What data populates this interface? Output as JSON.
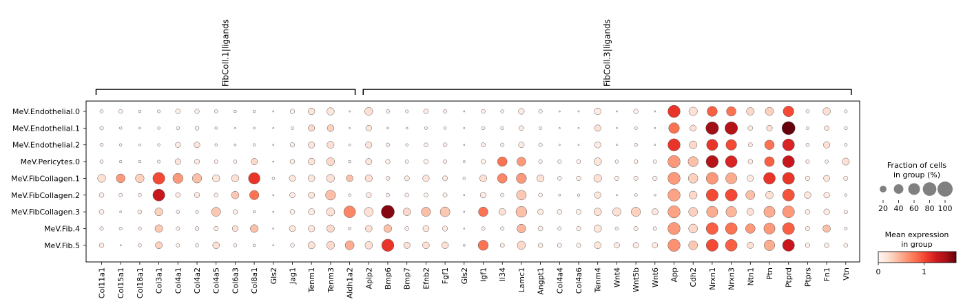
{
  "chart_data": {
    "type": "dotplot",
    "groups": [
      "MeV.Endothelial.0",
      "MeV.Endothelial.1",
      "MeV.Endothelial.2",
      "MeV.Pericytes.0",
      "MeV.FibCollagen.1",
      "MeV.FibCollagen.2",
      "MeV.FibCollagen.3",
      "MeV.Fib.4",
      "MeV.Fib.5"
    ],
    "genes": [
      "Col11a1",
      "Col15a1",
      "Col18a1",
      "Col3a1",
      "Col4a1",
      "Col4a2",
      "Col4a5",
      "Col6a3",
      "Col8a1",
      "Gls2",
      "Jag1",
      "Tenm1",
      "Tenm3",
      "Aldh1a2",
      "Aplp2",
      "Bmp6",
      "Bmp7",
      "Efnb2",
      "Fgf1",
      "Gls2",
      "Igf1",
      "Il34",
      "Lamc1",
      "Angpt1",
      "Col4a4",
      "Col4a6",
      "Tenm4",
      "Wnt4",
      "Wnt5b",
      "Wnt6",
      "App",
      "Cdh2",
      "Nrxn1",
      "Nrxn3",
      "Ntn1",
      "Ptn",
      "Ptprd",
      "Ptprs",
      "Fn1",
      "Vtn"
    ],
    "brackets": [
      {
        "label": "FibColl.1|ligands",
        "start": 0,
        "end": 13
      },
      {
        "label": "FibColl.3|ligands",
        "start": 14,
        "end": 39
      }
    ],
    "fraction_pct": [
      [
        5,
        7,
        3,
        4,
        10,
        9,
        5,
        3,
        3,
        1,
        9,
        20,
        24,
        1,
        28,
        6,
        4,
        10,
        6,
        1,
        7,
        5,
        15,
        6,
        1,
        1,
        20,
        1,
        9,
        1,
        65,
        32,
        45,
        40,
        26,
        30,
        50,
        5,
        24,
        4
      ],
      [
        6,
        3,
        2,
        3,
        5,
        7,
        3,
        1,
        2,
        1,
        4,
        18,
        20,
        1,
        15,
        2,
        2,
        4,
        3,
        1,
        5,
        5,
        10,
        4,
        1,
        1,
        18,
        1,
        4,
        1,
        50,
        17,
        70,
        70,
        10,
        15,
        75,
        4,
        10,
        5
      ],
      [
        5,
        3,
        2,
        3,
        12,
        15,
        3,
        2,
        3,
        1,
        9,
        18,
        22,
        2,
        18,
        6,
        3,
        7,
        7,
        1,
        8,
        6,
        14,
        6,
        1,
        1,
        17,
        1,
        5,
        1,
        65,
        27,
        55,
        50,
        8,
        40,
        62,
        5,
        19,
        4
      ],
      [
        5,
        3,
        3,
        4,
        15,
        11,
        6,
        5,
        18,
        1,
        10,
        20,
        28,
        3,
        17,
        9,
        5,
        9,
        6,
        2,
        9,
        40,
        35,
        6,
        6,
        7,
        25,
        5,
        7,
        5,
        65,
        45,
        65,
        60,
        10,
        42,
        62,
        6,
        5,
        22
      ],
      [
        28,
        34,
        33,
        62,
        45,
        38,
        24,
        24,
        58,
        3,
        17,
        20,
        28,
        20,
        23,
        7,
        11,
        19,
        11,
        3,
        22,
        40,
        45,
        23,
        7,
        9,
        27,
        9,
        8,
        9,
        65,
        40,
        62,
        55,
        18,
        60,
        62,
        9,
        17,
        8
      ],
      [
        10,
        6,
        5,
        62,
        10,
        12,
        7,
        25,
        38,
        1,
        13,
        17,
        44,
        3,
        12,
        6,
        7,
        8,
        8,
        1,
        15,
        6,
        42,
        7,
        2,
        3,
        19,
        1,
        4,
        2,
        65,
        28,
        62,
        62,
        36,
        25,
        62,
        20,
        15,
        3
      ],
      [
        10,
        2,
        7,
        28,
        5,
        4,
        36,
        9,
        3,
        1,
        10,
        18,
        30,
        60,
        35,
        75,
        25,
        37,
        42,
        1,
        40,
        21,
        52,
        14,
        10,
        11,
        25,
        31,
        38,
        18,
        65,
        35,
        55,
        50,
        22,
        55,
        62,
        10,
        15,
        6
      ],
      [
        6,
        4,
        5,
        26,
        6,
        7,
        9,
        15,
        27,
        1,
        17,
        19,
        25,
        4,
        20,
        27,
        7,
        17,
        12,
        1,
        6,
        6,
        33,
        10,
        6,
        8,
        25,
        5,
        8,
        6,
        65,
        35,
        62,
        60,
        40,
        55,
        62,
        8,
        25,
        4
      ],
      [
        10,
        1,
        5,
        21,
        6,
        5,
        20,
        5,
        3,
        1,
        7,
        22,
        28,
        36,
        25,
        65,
        18,
        20,
        20,
        2,
        45,
        8,
        30,
        10,
        8,
        8,
        21,
        14,
        14,
        14,
        65,
        35,
        62,
        60,
        18,
        50,
        62,
        9,
        10,
        7
      ]
    ],
    "mean_expression": [
      [
        0.05,
        0.05,
        0.02,
        0.05,
        0.05,
        0.05,
        0.05,
        0.03,
        0.03,
        0,
        0.05,
        0.15,
        0.15,
        0,
        0.2,
        0.05,
        0.03,
        0.1,
        0.05,
        0,
        0.05,
        0.05,
        0.1,
        0.05,
        0,
        0,
        0.1,
        0,
        0.05,
        0,
        1.1,
        0.2,
        0.9,
        0.8,
        0.25,
        0.3,
        1.0,
        0.05,
        0.2,
        0.05
      ],
      [
        0.05,
        0.02,
        0.02,
        0.02,
        0.05,
        0.05,
        0.03,
        0.01,
        0.01,
        0,
        0.03,
        0.25,
        0.3,
        0,
        0.15,
        0.03,
        0.02,
        0.05,
        0.03,
        0,
        0.05,
        0.05,
        0.1,
        0.05,
        0,
        0,
        0.2,
        0,
        0.05,
        0,
        0.8,
        0.2,
        1.5,
        1.4,
        0.1,
        0.2,
        1.8,
        0.05,
        0.15,
        0.05
      ],
      [
        0.05,
        0.03,
        0.02,
        0.03,
        0.1,
        0.15,
        0.03,
        0.02,
        0.03,
        0,
        0.05,
        0.15,
        0.2,
        0,
        0.15,
        0.05,
        0.03,
        0.05,
        0.05,
        0,
        0.05,
        0.05,
        0.1,
        0.05,
        0,
        0,
        0.1,
        0,
        0.05,
        0,
        1.1,
        0.25,
        1.1,
        1.0,
        0.1,
        0.8,
        1.2,
        0.05,
        0.2,
        0.05
      ],
      [
        0.05,
        0.03,
        0.02,
        0.05,
        0.15,
        0.1,
        0.05,
        0.05,
        0.25,
        0,
        0.1,
        0.15,
        0.25,
        0,
        0.15,
        0.05,
        0.03,
        0.05,
        0.05,
        0,
        0.05,
        0.8,
        0.6,
        0.05,
        0.05,
        0.05,
        0.15,
        0.05,
        0.05,
        0.05,
        0.6,
        0.4,
        1.4,
        1.2,
        0.1,
        0.9,
        1.3,
        0.05,
        0.05,
        0.2
      ],
      [
        0.2,
        0.6,
        0.3,
        1.0,
        0.6,
        0.4,
        0.15,
        0.2,
        1.1,
        0,
        0.15,
        0.15,
        0.2,
        0.4,
        0.2,
        0.05,
        0.1,
        0.15,
        0.1,
        0,
        0.2,
        0.7,
        0.6,
        0.2,
        0.05,
        0.05,
        0.2,
        0.05,
        0.05,
        0.05,
        0.6,
        0.3,
        0.6,
        0.5,
        0.1,
        1.1,
        1.1,
        0.05,
        0.15,
        0.05
      ],
      [
        0.05,
        0.05,
        0.05,
        1.3,
        0.1,
        0.1,
        0.05,
        0.35,
        0.8,
        0,
        0.1,
        0.15,
        0.4,
        0,
        0.1,
        0.05,
        0.05,
        0.05,
        0.05,
        0,
        0.1,
        0.05,
        0.35,
        0.05,
        0,
        0,
        0.15,
        0,
        0.05,
        0,
        0.55,
        0.25,
        1.0,
        1.0,
        0.4,
        0.2,
        0.95,
        0.15,
        0.1,
        0.05
      ],
      [
        0.05,
        0.01,
        0.05,
        0.3,
        0.05,
        0.05,
        0.35,
        0.05,
        0.03,
        0,
        0.05,
        0.1,
        0.2,
        0.7,
        0.2,
        1.6,
        0.25,
        0.4,
        0.35,
        0,
        0.8,
        0.2,
        0.4,
        0.1,
        0.05,
        0.05,
        0.2,
        0.2,
        0.3,
        0.15,
        0.55,
        0.3,
        0.5,
        0.45,
        0.2,
        0.5,
        0.6,
        0.05,
        0.1,
        0.05
      ],
      [
        0.05,
        0.05,
        0.05,
        0.35,
        0.05,
        0.05,
        0.05,
        0.2,
        0.4,
        0,
        0.15,
        0.15,
        0.25,
        0.05,
        0.2,
        0.4,
        0.05,
        0.15,
        0.1,
        0,
        0.05,
        0.05,
        0.45,
        0.05,
        0.05,
        0.05,
        0.15,
        0.05,
        0.05,
        0.05,
        0.6,
        0.25,
        0.9,
        0.8,
        0.6,
        0.6,
        0.9,
        0.05,
        0.4,
        0.05
      ],
      [
        0.1,
        0.01,
        0.05,
        0.3,
        0.05,
        0.05,
        0.2,
        0.05,
        0.03,
        0,
        0.05,
        0.2,
        0.25,
        0.5,
        0.2,
        1.1,
        0.2,
        0.2,
        0.2,
        0,
        0.8,
        0.1,
        0.25,
        0.1,
        0.05,
        0.05,
        0.15,
        0.1,
        0.1,
        0.1,
        0.65,
        0.35,
        1.0,
        0.9,
        0.2,
        0.5,
        1.3,
        0.05,
        0.1,
        0.05
      ]
    ],
    "size_legend": {
      "title_lines": [
        "Fraction of cells",
        "in group (%)"
      ],
      "values": [
        20,
        40,
        60,
        80,
        100
      ]
    },
    "color_legend": {
      "title_lines": [
        "Mean expression",
        "in group"
      ],
      "ticks": [
        0,
        1
      ],
      "vmin": 0,
      "vmax": 1.7,
      "colormap": "Reds",
      "stops": [
        "#fff5f0",
        "#fee0d2",
        "#fcbba1",
        "#fc9272",
        "#fb6a4a",
        "#ef3b2c",
        "#cb181d",
        "#a50f15",
        "#67000d"
      ]
    }
  }
}
